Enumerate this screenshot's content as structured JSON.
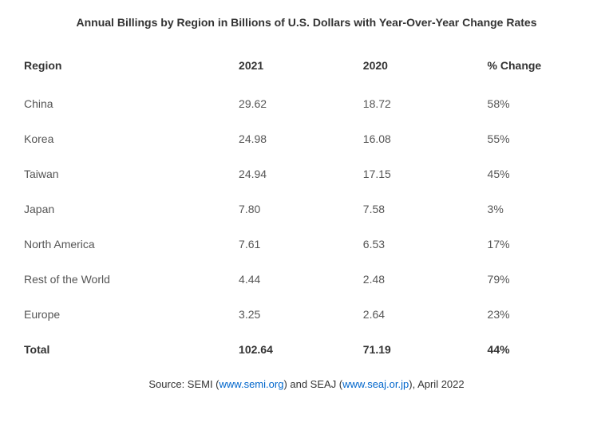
{
  "title": "Annual Billings by Region in Billions of U.S. Dollars with Year-Over-Year Change Rates",
  "table": {
    "columns": [
      "Region",
      "2021",
      "2020",
      "% Change"
    ],
    "rows": [
      {
        "region": "China",
        "y2021": "29.62",
        "y2020": "18.72",
        "change": "58%"
      },
      {
        "region": "Korea",
        "y2021": "24.98",
        "y2020": "16.08",
        "change": "55%"
      },
      {
        "region": "Taiwan",
        "y2021": "24.94",
        "y2020": "17.15",
        "change": "45%"
      },
      {
        "region": "Japan",
        "y2021": "7.80",
        "y2020": "7.58",
        "change": "3%"
      },
      {
        "region": "North America",
        "y2021": "7.61",
        "y2020": "6.53",
        "change": "17%"
      },
      {
        "region": "Rest of the World",
        "y2021": "4.44",
        "y2020": "2.48",
        "change": "79%"
      },
      {
        "region": "Europe",
        "y2021": "3.25",
        "y2020": "2.64",
        "change": "23%"
      }
    ],
    "total": {
      "region": "Total",
      "y2021": "102.64",
      "y2020": "71.19",
      "change": "44%"
    }
  },
  "footer": {
    "prefix": "Source: SEMI (",
    "link1_text": "www.semi.org",
    "mid": ") and SEAJ (",
    "link2_text": "www.seaj.or.jp",
    "suffix": "), April 2022"
  },
  "styling": {
    "background_color": "#ffffff",
    "title_fontsize": 14,
    "title_fontweight": "bold",
    "header_fontsize": 14,
    "cell_fontsize": 14,
    "footer_fontsize": 13,
    "text_color": "#333333",
    "cell_text_color": "#555555",
    "link_color": "#0066cc",
    "column_widths_pct": [
      38,
      22,
      22,
      18
    ]
  }
}
